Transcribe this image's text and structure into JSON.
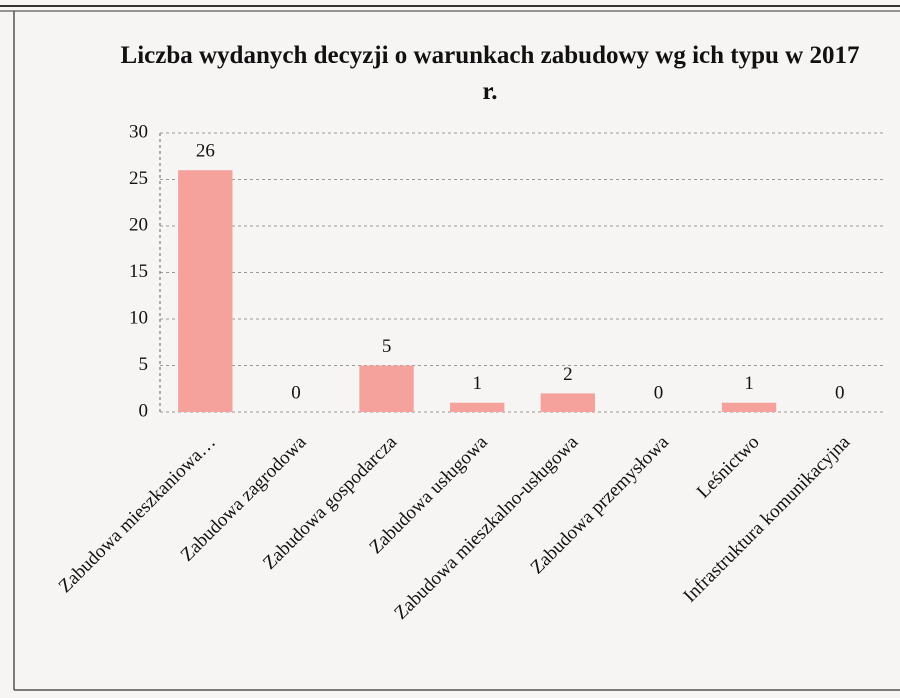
{
  "chart_data": {
    "type": "bar",
    "title": "Liczba wydanych decyzji o warunkach zabudowy wg ich typu w 2017 r.",
    "categories": [
      "Zabudowa mieszkaniowa…",
      "Zabudowa zagrodowa",
      "Zabudowa gospodarcza",
      "Zabudowa usługowa",
      "Zabudowa mieszkalno-usługowa",
      "Zabudowa przemysłowa",
      "Leśnictwo",
      "Infrastruktura komunikacyjna"
    ],
    "values": [
      26,
      0,
      5,
      1,
      2,
      0,
      1,
      0
    ],
    "color": "#f4a29b",
    "ylim": [
      0,
      30
    ],
    "yticks": [
      0,
      5,
      10,
      15,
      20,
      25,
      30
    ],
    "grid": true
  }
}
